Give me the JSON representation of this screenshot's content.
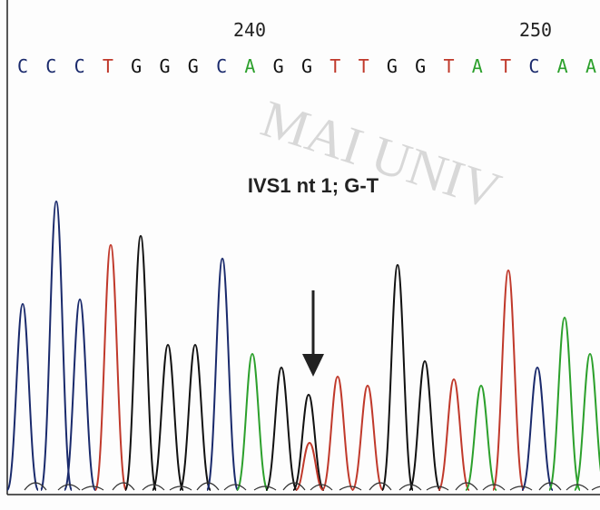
{
  "ruler": {
    "labels": [
      "240",
      "250"
    ]
  },
  "sequence": {
    "bases": [
      "C",
      "C",
      "C",
      "T",
      "G",
      "G",
      "G",
      "C",
      "A",
      "G",
      "G",
      "T",
      "T",
      "G",
      "G",
      "T",
      "A",
      "T",
      "C",
      "A",
      "A"
    ],
    "colors": {
      "A": "#2ca02c",
      "C": "#1a2a6c",
      "G": "#111111",
      "T": "#c0392b"
    }
  },
  "annotation": "IVS1 nt 1; G-T",
  "watermark": "MAI UNIV"
}
